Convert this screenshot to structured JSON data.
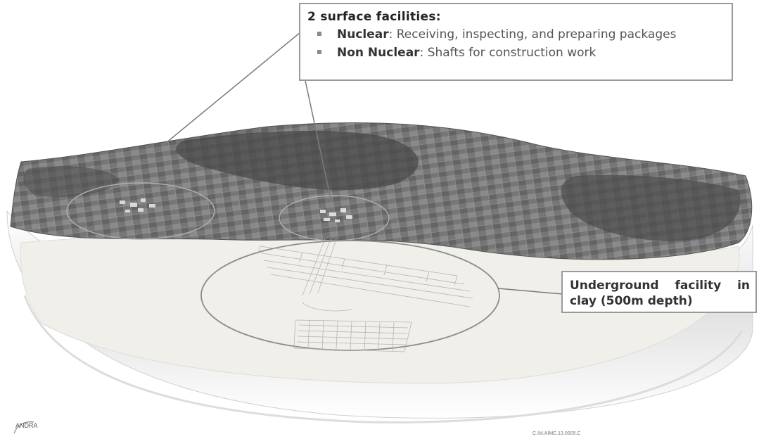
{
  "surface_callout": {
    "title": "2 surface facilities:",
    "items": [
      {
        "term": "Nuclear",
        "text": ": Receiving, inspecting, and preparing packages"
      },
      {
        "term": "Non Nuclear",
        "text": ": Shafts for construction work"
      }
    ]
  },
  "underground_callout": {
    "line1": "Underground facility in",
    "line2": "clay (500m depth)"
  },
  "logo_text": "ANDRA",
  "reference_code": "C.IM.AIMC.13.0005.C",
  "colors": {
    "terrain": "#6f6f6f",
    "clay": "#f0efe9",
    "outline": "#8c8c8c"
  }
}
